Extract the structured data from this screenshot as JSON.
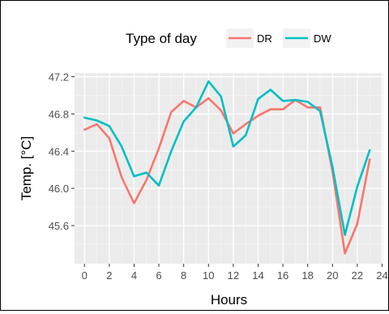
{
  "chart_data": {
    "type": "line",
    "xlabel": "Hours",
    "ylabel": "Temp. [°C]",
    "xlim": [
      -0.8,
      24.1
    ],
    "ylim": [
      45.19,
      47.24
    ],
    "x_ticks": [
      0,
      2,
      4,
      6,
      8,
      10,
      12,
      14,
      16,
      18,
      20,
      22,
      24
    ],
    "y_ticks": [
      45.6,
      46.0,
      46.4,
      46.8,
      47.2
    ],
    "x_tick_labels": [
      "0",
      "2",
      "4",
      "6",
      "8",
      "10",
      "12",
      "14",
      "16",
      "18",
      "20",
      "22",
      "24"
    ],
    "y_tick_labels": [
      "45.6",
      "46.0",
      "46.4",
      "46.8",
      "47.2"
    ],
    "grid": true,
    "legend": {
      "title": "Type of day",
      "position": "top"
    },
    "x": [
      0,
      1,
      2,
      3,
      4,
      5,
      6,
      7,
      8,
      9,
      10,
      11,
      12,
      13,
      14,
      15,
      16,
      17,
      18,
      19,
      20,
      21,
      22,
      23
    ],
    "series": [
      {
        "name": "DR",
        "color": "#F8766D",
        "values": [
          46.63,
          46.69,
          46.54,
          46.12,
          45.84,
          46.09,
          46.43,
          46.82,
          46.94,
          46.87,
          46.97,
          46.84,
          46.59,
          46.69,
          46.78,
          46.85,
          46.85,
          46.95,
          46.87,
          46.87,
          46.18,
          45.3,
          45.62,
          46.31
        ]
      },
      {
        "name": "DW",
        "color": "#00BFC4",
        "values": [
          46.76,
          46.73,
          46.67,
          46.45,
          46.13,
          46.17,
          46.03,
          46.4,
          46.72,
          46.87,
          47.15,
          46.99,
          46.45,
          46.57,
          46.96,
          47.06,
          46.94,
          46.95,
          46.93,
          46.83,
          46.23,
          45.5,
          46.02,
          46.41
        ]
      }
    ]
  },
  "colors": {
    "panel_bg": "#EBEBEB",
    "grid_major": "#FFFFFF",
    "axis_text": "#4D4D4D",
    "title_text": "#000000"
  }
}
